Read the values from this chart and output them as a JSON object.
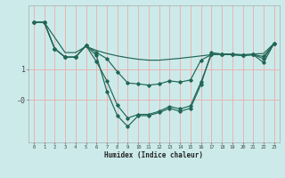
{
  "title": "",
  "xlabel": "Humidex (Indice chaleur)",
  "bg_color": "#cceaea",
  "grid_color": "#f0aaaa",
  "line_color": "#226655",
  "x_values": [
    0,
    1,
    2,
    3,
    4,
    5,
    6,
    7,
    8,
    9,
    10,
    11,
    12,
    13,
    14,
    15,
    16,
    17,
    18,
    19,
    20,
    21,
    22,
    23
  ],
  "series1": [
    2.55,
    2.55,
    2.05,
    1.55,
    1.55,
    1.75,
    1.62,
    1.52,
    1.44,
    1.38,
    1.33,
    1.3,
    1.3,
    1.33,
    1.36,
    1.4,
    1.44,
    1.48,
    1.5,
    1.5,
    1.48,
    1.5,
    1.52,
    1.85
  ],
  "series2": [
    2.55,
    2.55,
    1.68,
    1.4,
    1.4,
    1.78,
    1.55,
    1.35,
    0.92,
    0.55,
    0.52,
    0.48,
    0.52,
    0.62,
    0.58,
    0.65,
    1.3,
    1.48,
    1.5,
    1.48,
    1.46,
    1.48,
    1.42,
    1.85
  ],
  "series3": [
    2.55,
    2.55,
    1.68,
    1.4,
    1.4,
    1.78,
    1.25,
    0.62,
    -0.18,
    -0.6,
    -0.48,
    -0.48,
    -0.38,
    -0.22,
    -0.3,
    -0.2,
    0.58,
    1.48,
    1.5,
    1.48,
    1.46,
    1.48,
    1.35,
    1.85
  ],
  "series4": [
    2.55,
    2.55,
    1.68,
    1.4,
    1.4,
    1.78,
    1.45,
    0.28,
    -0.52,
    -0.88,
    -0.52,
    -0.52,
    -0.42,
    -0.28,
    -0.38,
    -0.28,
    0.5,
    1.55,
    1.5,
    1.48,
    1.46,
    1.48,
    1.22,
    1.85
  ],
  "ytick_vals": [
    1,
    0
  ],
  "ytick_labels": [
    "1",
    "-0"
  ],
  "ylim": [
    -1.4,
    3.1
  ],
  "xlim": [
    -0.5,
    23.5
  ]
}
